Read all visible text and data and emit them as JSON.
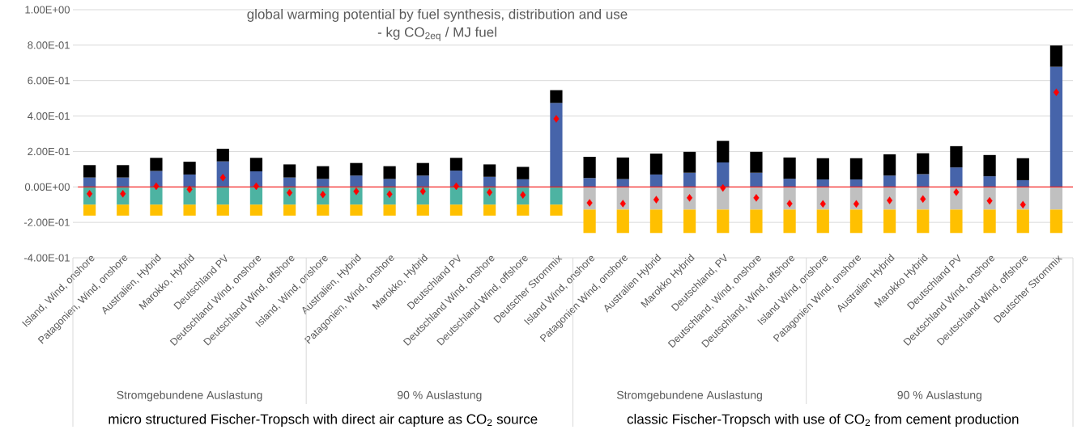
{
  "chart_data": {
    "type": "bar",
    "title": "global warming potential by fuel synthesis, distribution and use",
    "subtitle": "- kg CO$_{2eq}$ / MJ fuel",
    "categories": [
      "Island, Wind, onshore",
      "Patagonien, Wind, onshore",
      "Australien, Hybrid",
      "Marokko, Hybrid",
      "Deutschland PV",
      "Deutschland Wind, onshore",
      "Deutschland Wind, offshore",
      "Island, Wind, onshore",
      "Australien, Hybrid",
      "Patagonien, Wind, onshore",
      "Marokko, Hybrid",
      "Deutschland PV",
      "Deutschland Wind, onshore",
      "Deutschland Wind, offshore",
      "Deutscher Strommix",
      "Island Wind, onshore",
      "Patagonien Wind, onshore",
      "Australien Hybrid",
      "Marokko Hybrid",
      "Deutschland, PV",
      "Deutschland, Wind, onshore",
      "Deutschland, Wind, offshore",
      "Island Wind, onshore",
      "Patagonien Wind, onshore",
      "Australien Hybrid",
      "Marokko Hybrid",
      "Deutschland PV",
      "Deutschland Wind, onshore",
      "Deutschland Wind, offshore",
      "Deutscher Strommix"
    ],
    "stacked": true,
    "series": [
      {
        "color": "#4664aa",
        "values": [
          0.053,
          0.053,
          0.09,
          0.07,
          0.144,
          0.088,
          0.053,
          0.045,
          0.064,
          0.045,
          0.064,
          0.092,
          0.057,
          0.043,
          0.474,
          0.05,
          0.044,
          0.07,
          0.08,
          0.138,
          0.08,
          0.046,
          0.042,
          0.042,
          0.064,
          0.072,
          0.11,
          0.06,
          0.038,
          0.678
        ]
      },
      {
        "color": "#000000",
        "values": [
          0.07,
          0.07,
          0.074,
          0.072,
          0.071,
          0.076,
          0.074,
          0.072,
          0.071,
          0.072,
          0.071,
          0.072,
          0.07,
          0.07,
          0.072,
          0.12,
          0.122,
          0.118,
          0.118,
          0.122,
          0.118,
          0.12,
          0.12,
          0.12,
          0.12,
          0.118,
          0.12,
          0.12,
          0.124,
          0.12
        ]
      },
      {
        "color": "#4db3a2",
        "values": [
          -0.1,
          -0.1,
          -0.1,
          -0.1,
          -0.1,
          -0.1,
          -0.1,
          -0.1,
          -0.1,
          -0.1,
          -0.1,
          -0.1,
          -0.1,
          -0.1,
          -0.1,
          null,
          null,
          null,
          null,
          null,
          null,
          null,
          null,
          null,
          null,
          null,
          null,
          null,
          null,
          null
        ]
      },
      {
        "color": "#c0c0c0",
        "values": [
          null,
          null,
          null,
          null,
          null,
          null,
          null,
          null,
          null,
          null,
          null,
          null,
          null,
          null,
          null,
          -0.128,
          -0.128,
          -0.128,
          -0.128,
          -0.128,
          -0.128,
          -0.128,
          -0.128,
          -0.128,
          -0.128,
          -0.128,
          -0.128,
          -0.128,
          -0.128,
          -0.128
        ]
      },
      {
        "color": "#ffc000",
        "values": [
          -0.062,
          -0.062,
          -0.062,
          -0.062,
          -0.062,
          -0.062,
          -0.062,
          -0.062,
          -0.062,
          -0.062,
          -0.062,
          -0.062,
          -0.062,
          -0.062,
          -0.062,
          -0.132,
          -0.132,
          -0.132,
          -0.132,
          -0.132,
          -0.132,
          -0.132,
          -0.132,
          -0.132,
          -0.132,
          -0.132,
          -0.132,
          -0.132,
          -0.132,
          -0.132
        ]
      },
      {
        "type": "scatter",
        "marker": "diamond",
        "color": "#ff0000",
        "values": [
          -0.039,
          -0.039,
          0.004,
          -0.014,
          0.053,
          0.004,
          -0.033,
          -0.043,
          -0.025,
          -0.041,
          -0.025,
          0.004,
          -0.031,
          -0.045,
          0.384,
          -0.09,
          -0.094,
          -0.072,
          -0.062,
          -0.006,
          -0.062,
          -0.094,
          -0.096,
          -0.096,
          -0.076,
          -0.068,
          -0.03,
          -0.078,
          -0.1,
          0.534
        ]
      }
    ],
    "ylim": [
      -0.4,
      1.0
    ],
    "yticks": [
      {
        "value": -0.4,
        "label": "-4.00E-01"
      },
      {
        "value": -0.2,
        "label": "-2.00E-01"
      },
      {
        "value": 0,
        "label": "0.00E+00"
      },
      {
        "value": 0.2,
        "label": "2.00E-01"
      },
      {
        "value": 0.4,
        "label": "4.00E-01"
      },
      {
        "value": 0.6,
        "label": "6.00E-01"
      },
      {
        "value": 0.8,
        "label": "8.00E-01"
      },
      {
        "value": 1.0,
        "label": "1.00E+00"
      }
    ],
    "grid": "y",
    "ref_lines": [
      {
        "axis": "y",
        "value": 0,
        "color": "#ff0000"
      }
    ],
    "annotations": [
      "Stromgebundene Auslastung",
      "90 % Auslastung",
      "Stromgebundene Auslastung",
      "90 % Auslastung",
      "micro  structured Fischer-Tropsch with direct air capture as CO$_{2}$ source",
      "classic Fischer-Tropsch with use of CO$_{2}$ from cement production"
    ]
  }
}
